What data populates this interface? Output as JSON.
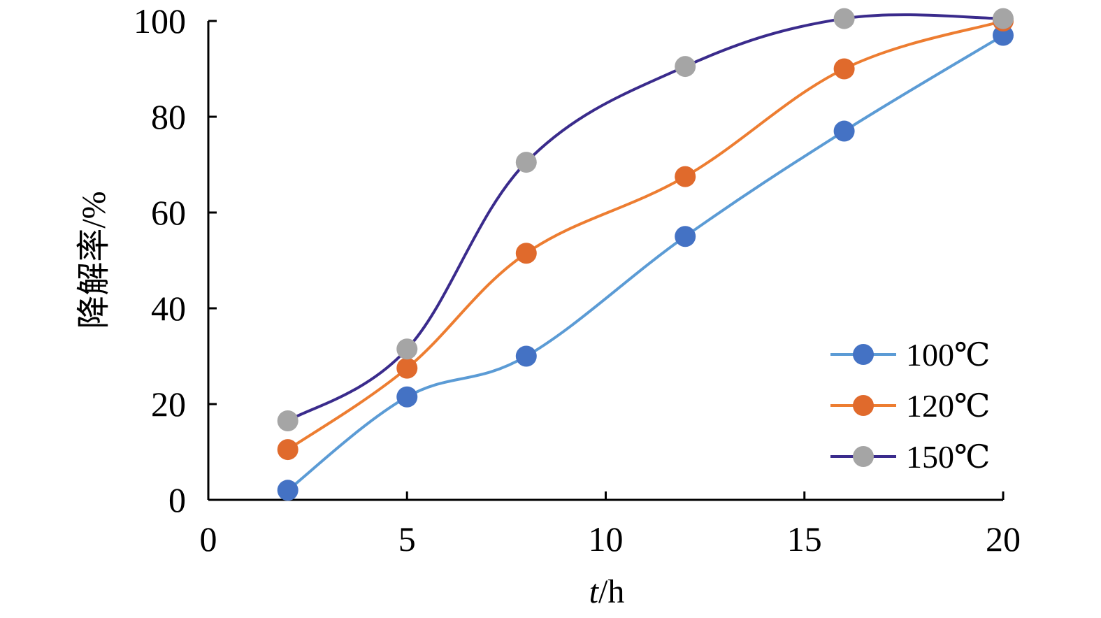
{
  "chart_data": {
    "type": "line",
    "xlabel_italic": "t",
    "xlabel_unit": "/h",
    "ylabel": "降解率/%",
    "xlim": [
      0,
      20
    ],
    "ylim": [
      0,
      100
    ],
    "xticks": [
      0,
      5,
      10,
      15,
      20
    ],
    "yticks": [
      0,
      20,
      40,
      60,
      80,
      100
    ],
    "x": [
      2,
      5,
      8,
      12,
      16,
      20
    ],
    "legend_position": "bottom-right",
    "grid": false,
    "series": [
      {
        "name": "100℃",
        "values": [
          2,
          21.5,
          30,
          55,
          77,
          97
        ],
        "line_color": "#5b9bd5",
        "marker_color": "#4472c4"
      },
      {
        "name": "120℃",
        "values": [
          10.5,
          27.5,
          51.5,
          67.5,
          90,
          100
        ],
        "line_color": "#ed7d31",
        "marker_color": "#e06a2c"
      },
      {
        "name": "150℃",
        "values": [
          16.5,
          31.5,
          70.5,
          90.5,
          100.5,
          100.5
        ],
        "line_color": "#3a2b8c",
        "marker_color": "#a5a5a5"
      }
    ]
  }
}
